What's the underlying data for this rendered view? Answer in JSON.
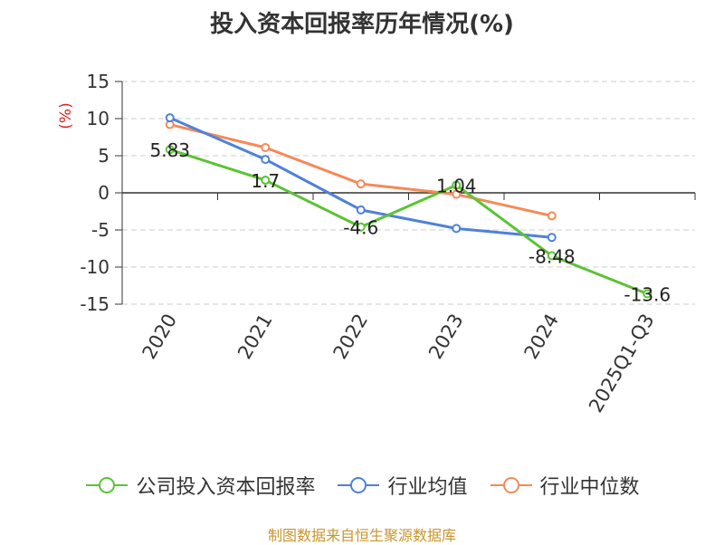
{
  "chart_data": {
    "type": "line",
    "title": "投入资本回报率历年情况(%)",
    "ylabel": "(%)",
    "ylim": [
      -15,
      15
    ],
    "yticks": [
      15,
      10,
      5,
      0,
      -5,
      -10,
      -15
    ],
    "categories": [
      "2020",
      "2021",
      "2022",
      "2023",
      "2024",
      "2025Q1-Q3"
    ],
    "grid": true,
    "legend_position": "bottom",
    "series": [
      {
        "name": "公司投入资本回报率",
        "color": "#5cc335",
        "values": [
          5.83,
          1.7,
          -4.6,
          1.04,
          -8.48,
          -13.6
        ],
        "labels": [
          "5.83",
          "1.7",
          "-4.6",
          "1.04",
          "-8.48",
          "-13.6"
        ]
      },
      {
        "name": "行业均值",
        "color": "#4f81d9",
        "values": [
          10.1,
          4.5,
          -2.3,
          -4.8,
          -6.0,
          null
        ]
      },
      {
        "name": "行业中位数",
        "color": "#f48a58",
        "values": [
          9.2,
          6.1,
          1.2,
          -0.2,
          -3.1,
          null
        ]
      }
    ]
  },
  "footer": {
    "source": "制图数据来自恒生聚源数据库"
  }
}
